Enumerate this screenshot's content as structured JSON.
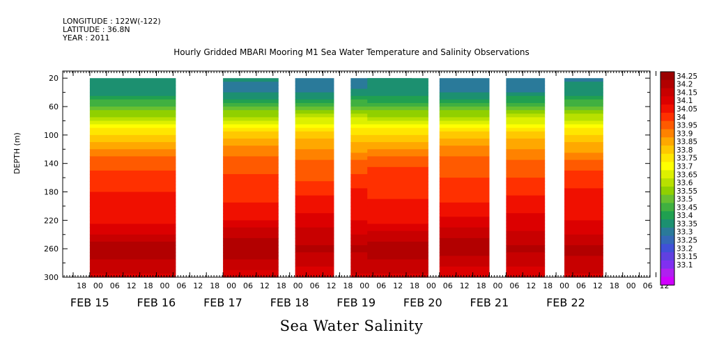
{
  "header": {
    "longitude": "LONGITUDE : 122W(-122)",
    "latitude": "LATITUDE : 36.8N",
    "year": "YEAR : 2011"
  },
  "chart_data": {
    "type": "heatmap",
    "title": "Hourly Gridded MBARI Mooring M1 Sea Water Temperature and Salinity Observations",
    "xlabel": "Sea Water Salinity",
    "ylabel": "DEPTH (m)",
    "y_ticks": [
      20,
      60,
      100,
      140,
      180,
      220,
      260,
      300
    ],
    "ylim": [
      300,
      10
    ],
    "x_hour_ticks": [
      "18",
      "00",
      "06",
      "12",
      "18",
      "00",
      "06",
      "12",
      "18",
      "00",
      "06",
      "12",
      "18",
      "00",
      "06",
      "12",
      "18",
      "00",
      "06",
      "12",
      "18",
      "00",
      "06",
      "12",
      "18",
      "00",
      "06",
      "12",
      "18",
      "00",
      "06",
      "12",
      "18",
      "00",
      "06",
      "12"
    ],
    "x_date_labels": [
      "FEB 15",
      "FEB 16",
      "FEB 17",
      "FEB 18",
      "FEB 19",
      "FEB 20",
      "FEB 21",
      "FEB 22"
    ],
    "colorbar_levels": [
      "34.25",
      "34.2",
      "34.15",
      "34.1",
      "34.05",
      "34",
      "33.95",
      "33.9",
      "33.85",
      "33.8",
      "33.75",
      "33.7",
      "33.65",
      "33.6",
      "33.55",
      "33.5",
      "33.45",
      "33.4",
      "33.35",
      "33.3",
      "33.25",
      "33.2",
      "33.15",
      "33.1"
    ],
    "colorbar_colors": [
      "#9b0000",
      "#b20000",
      "#c80000",
      "#dc0000",
      "#f01000",
      "#ff3000",
      "#ff5a00",
      "#ff8200",
      "#ffa800",
      "#ffc800",
      "#ffe600",
      "#ffff00",
      "#ddf000",
      "#b8e000",
      "#90d000",
      "#68c030",
      "#40b040",
      "#20a050",
      "#1c9070",
      "#2a7a9a",
      "#3468b8",
      "#4050d8",
      "#6040e0",
      "#8030f0",
      "#b020f0",
      "#d000ff"
    ],
    "data_segments": [
      {
        "start": "FEB 15 00",
        "end": "FEB 16 07",
        "top_depth": 20
      },
      {
        "start": "FEB 17 00",
        "end": "FEB 17 20",
        "top_depth": 20
      },
      {
        "start": "FEB 18 02",
        "end": "FEB 18 16",
        "top_depth": 20
      },
      {
        "start": "FEB 18 22",
        "end": "FEB 19 20",
        "top_depth": 20
      },
      {
        "start": "FEB 19 04",
        "end": "FEB 20 02",
        "top_depth": 20
      },
      {
        "start": "FEB 20 06",
        "end": "FEB 21 00",
        "top_depth": 20
      },
      {
        "start": "FEB 21 06",
        "end": "FEB 21 20",
        "top_depth": 20
      },
      {
        "start": "FEB 22 03",
        "end": "FEB 22 17",
        "top_depth": 20
      }
    ]
  }
}
